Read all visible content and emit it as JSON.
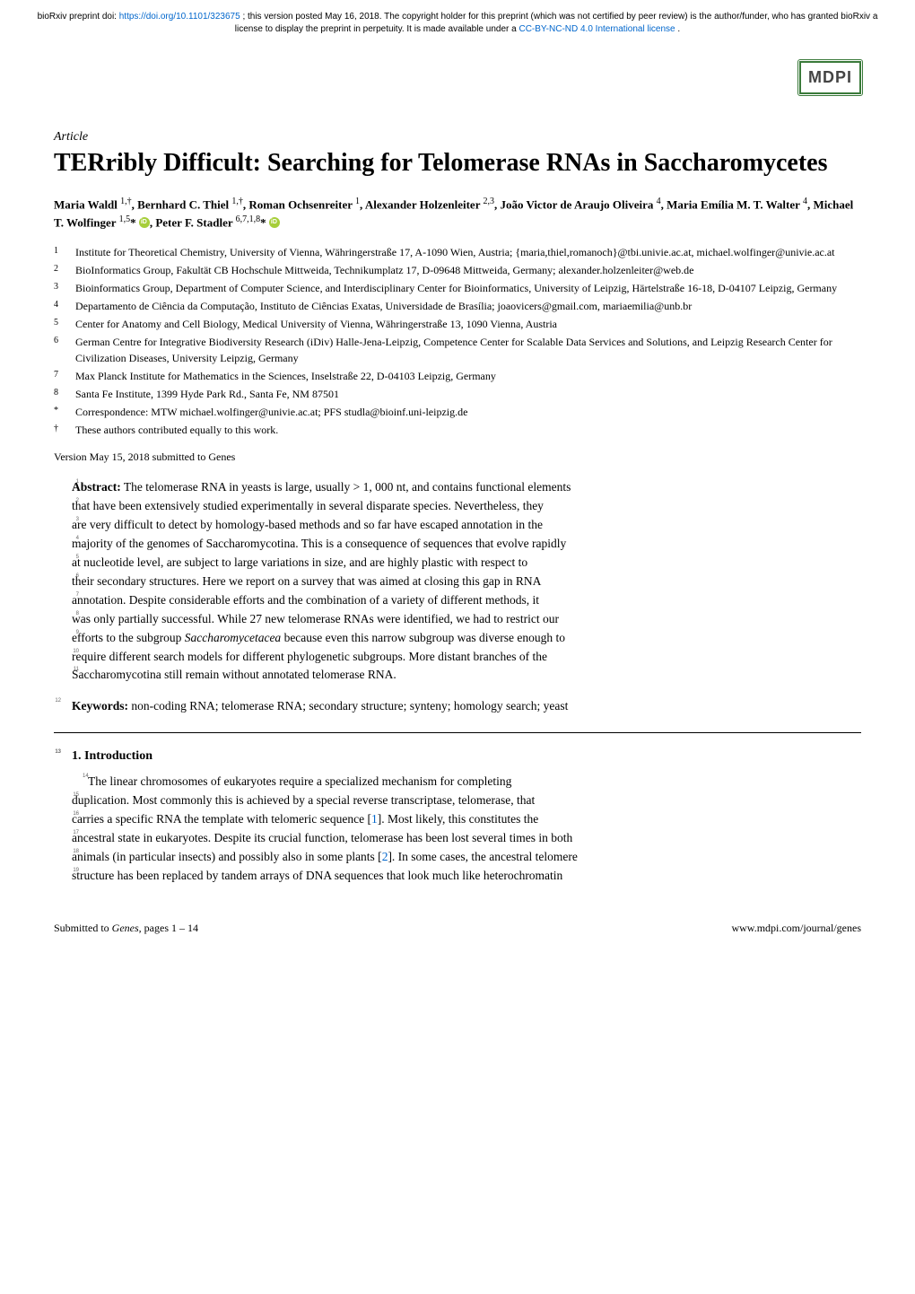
{
  "preprint": {
    "text_prefix": "bioRxiv preprint doi: ",
    "doi_url": "https://doi.org/10.1101/323675",
    "text_mid": "; this version posted May 16, 2018. The copyright holder for this preprint (which was not certified by peer review) is the author/funder, who has granted bioRxiv a license to display the preprint in perpetuity. It is made available under a",
    "license_url": "CC-BY-NC-ND 4.0 International license",
    "text_suffix": "."
  },
  "logo_text": "MDPI",
  "article_type": "Article",
  "title": "TERribly Difficult: Searching for Telomerase RNAs in Saccharomycetes",
  "authors_html": "Maria Waldl <sup>1,†</sup>, Bernhard C. Thiel <sup>1,†</sup>, Roman Ochsenreiter <sup>1</sup>, Alexander Holzenleiter <sup>2,3</sup>, João Victor de Araujo Oliveira <sup>4</sup>, Maria Emília M. T. Walter <sup>4</sup>, Michael T. Wolfinger <sup>1,5</sup>* {ORCID}, Peter F. Stadler <sup>6,7,1,8</sup>* {ORCID}",
  "affiliations": [
    {
      "marker": "1",
      "text": "Institute for Theoretical Chemistry, University of Vienna, Währingerstraße 17, A-1090 Wien, Austria; {maria,thiel,romanoch}@tbi.univie.ac.at, michael.wolfinger@univie.ac.at"
    },
    {
      "marker": "2",
      "text": "BioInformatics Group, Fakultät CB Hochschule Mittweida, Technikumplatz 17, D-09648 Mittweida, Germany; alexander.holzenleiter@web.de"
    },
    {
      "marker": "3",
      "text": "Bioinformatics Group, Department of Computer Science, and Interdisciplinary Center for Bioinformatics, University of Leipzig, Härtelstraße 16-18, D-04107 Leipzig, Germany"
    },
    {
      "marker": "4",
      "text": "Departamento de Ciência da Computação, Instituto de Ciências Exatas, Universidade de Brasília; joaovicers@gmail.com, mariaemilia@unb.br"
    },
    {
      "marker": "5",
      "text": "Center for Anatomy and Cell Biology, Medical University of Vienna, Währingerstraße 13, 1090 Vienna, Austria"
    },
    {
      "marker": "6",
      "text": "German Centre for Integrative Biodiversity Research (iDiv) Halle-Jena-Leipzig, Competence Center for Scalable Data Services and Solutions, and Leipzig Research Center for Civilization Diseases, University Leipzig, Germany"
    },
    {
      "marker": "7",
      "text": "Max Planck Institute for Mathematics in the Sciences, Inselstraße 22, D-04103 Leipzig, Germany"
    },
    {
      "marker": "8",
      "text": "Santa Fe Institute, 1399 Hyde Park Rd., Santa Fe, NM 87501"
    },
    {
      "marker": "*",
      "text": "Correspondence: MTW michael.wolfinger@univie.ac.at; PFS studla@bioinf.uni-leipzig.de"
    },
    {
      "marker": "†",
      "text": "These authors contributed equally to this work."
    }
  ],
  "submitted": "Version May 15, 2018 submitted to Genes",
  "abstract": {
    "label": "Abstract:",
    "lines": [
      {
        "n": "1",
        "text": "The telomerase RNA in yeasts is large, usually > 1, 000 nt, and contains functional elements"
      },
      {
        "n": "2",
        "text": "that have been extensively studied experimentally in several disparate species. Nevertheless, they"
      },
      {
        "n": "3",
        "text": "are very difficult to detect by homology-based methods and so far have escaped annotation in the"
      },
      {
        "n": "4",
        "text": "majority of the genomes of Saccharomycotina. This is a consequence of sequences that evolve rapidly"
      },
      {
        "n": "5",
        "text": "at nucleotide level, are subject to large variations in size, and are highly plastic with respect to"
      },
      {
        "n": "6",
        "text": "their secondary structures. Here we report on a survey that was aimed at closing this gap in RNA"
      },
      {
        "n": "7",
        "text": "annotation. Despite considerable efforts and the combination of a variety of different methods, it"
      },
      {
        "n": "8",
        "text": "was only partially successful. While 27 new telomerase RNAs were identified, we had to restrict our"
      },
      {
        "n": "9",
        "text": "efforts to the subgroup Saccharomycetacea because even this narrow subgroup was diverse enough to"
      },
      {
        "n": "10",
        "text": "require different search models for different phylogenetic subgroups. More distant branches of the"
      },
      {
        "n": "11",
        "text": "Saccharomycotina still remain without annotated telomerase RNA."
      }
    ]
  },
  "keywords": {
    "n": "12",
    "label": "Keywords:",
    "text": "non-coding RNA; telomerase RNA; secondary structure; synteny; homology search; yeast"
  },
  "section_heading": {
    "n": "13",
    "text": "1. Introduction"
  },
  "body": {
    "lines": [
      {
        "n": "14",
        "text": "The linear chromosomes of eukaryotes require a specialized mechanism for completing"
      },
      {
        "n": "15",
        "text": "duplication. Most commonly this is achieved by a special reverse transcriptase, telomerase, that"
      },
      {
        "n": "16",
        "text": "carries a specific RNA the template with telomeric sequence [1]. Most likely, this constitutes the"
      },
      {
        "n": "17",
        "text": "ancestral state in eukaryotes. Despite its crucial function, telomerase has been lost several times in both"
      },
      {
        "n": "18",
        "text": "animals (in particular insects) and possibly also in some plants [2]. In some cases, the ancestral telomere"
      },
      {
        "n": "19",
        "text": "structure has been replaced by tandem arrays of DNA sequences that look much like heterochromatin"
      }
    ]
  },
  "footer": {
    "left_prefix": "Submitted to ",
    "left_journal": "Genes",
    "left_suffix": ", pages 1 – 14",
    "right": "www.mdpi.com/journal/genes"
  },
  "colors": {
    "link": "#0066cc",
    "orcid": "#a6ce39",
    "text": "#000000",
    "background": "#ffffff"
  },
  "typography": {
    "body_fontsize": 13.5,
    "title_fontsize": 28,
    "author_fontsize": 13,
    "affiliation_fontsize": 12,
    "linenumber_fontsize": 6
  }
}
